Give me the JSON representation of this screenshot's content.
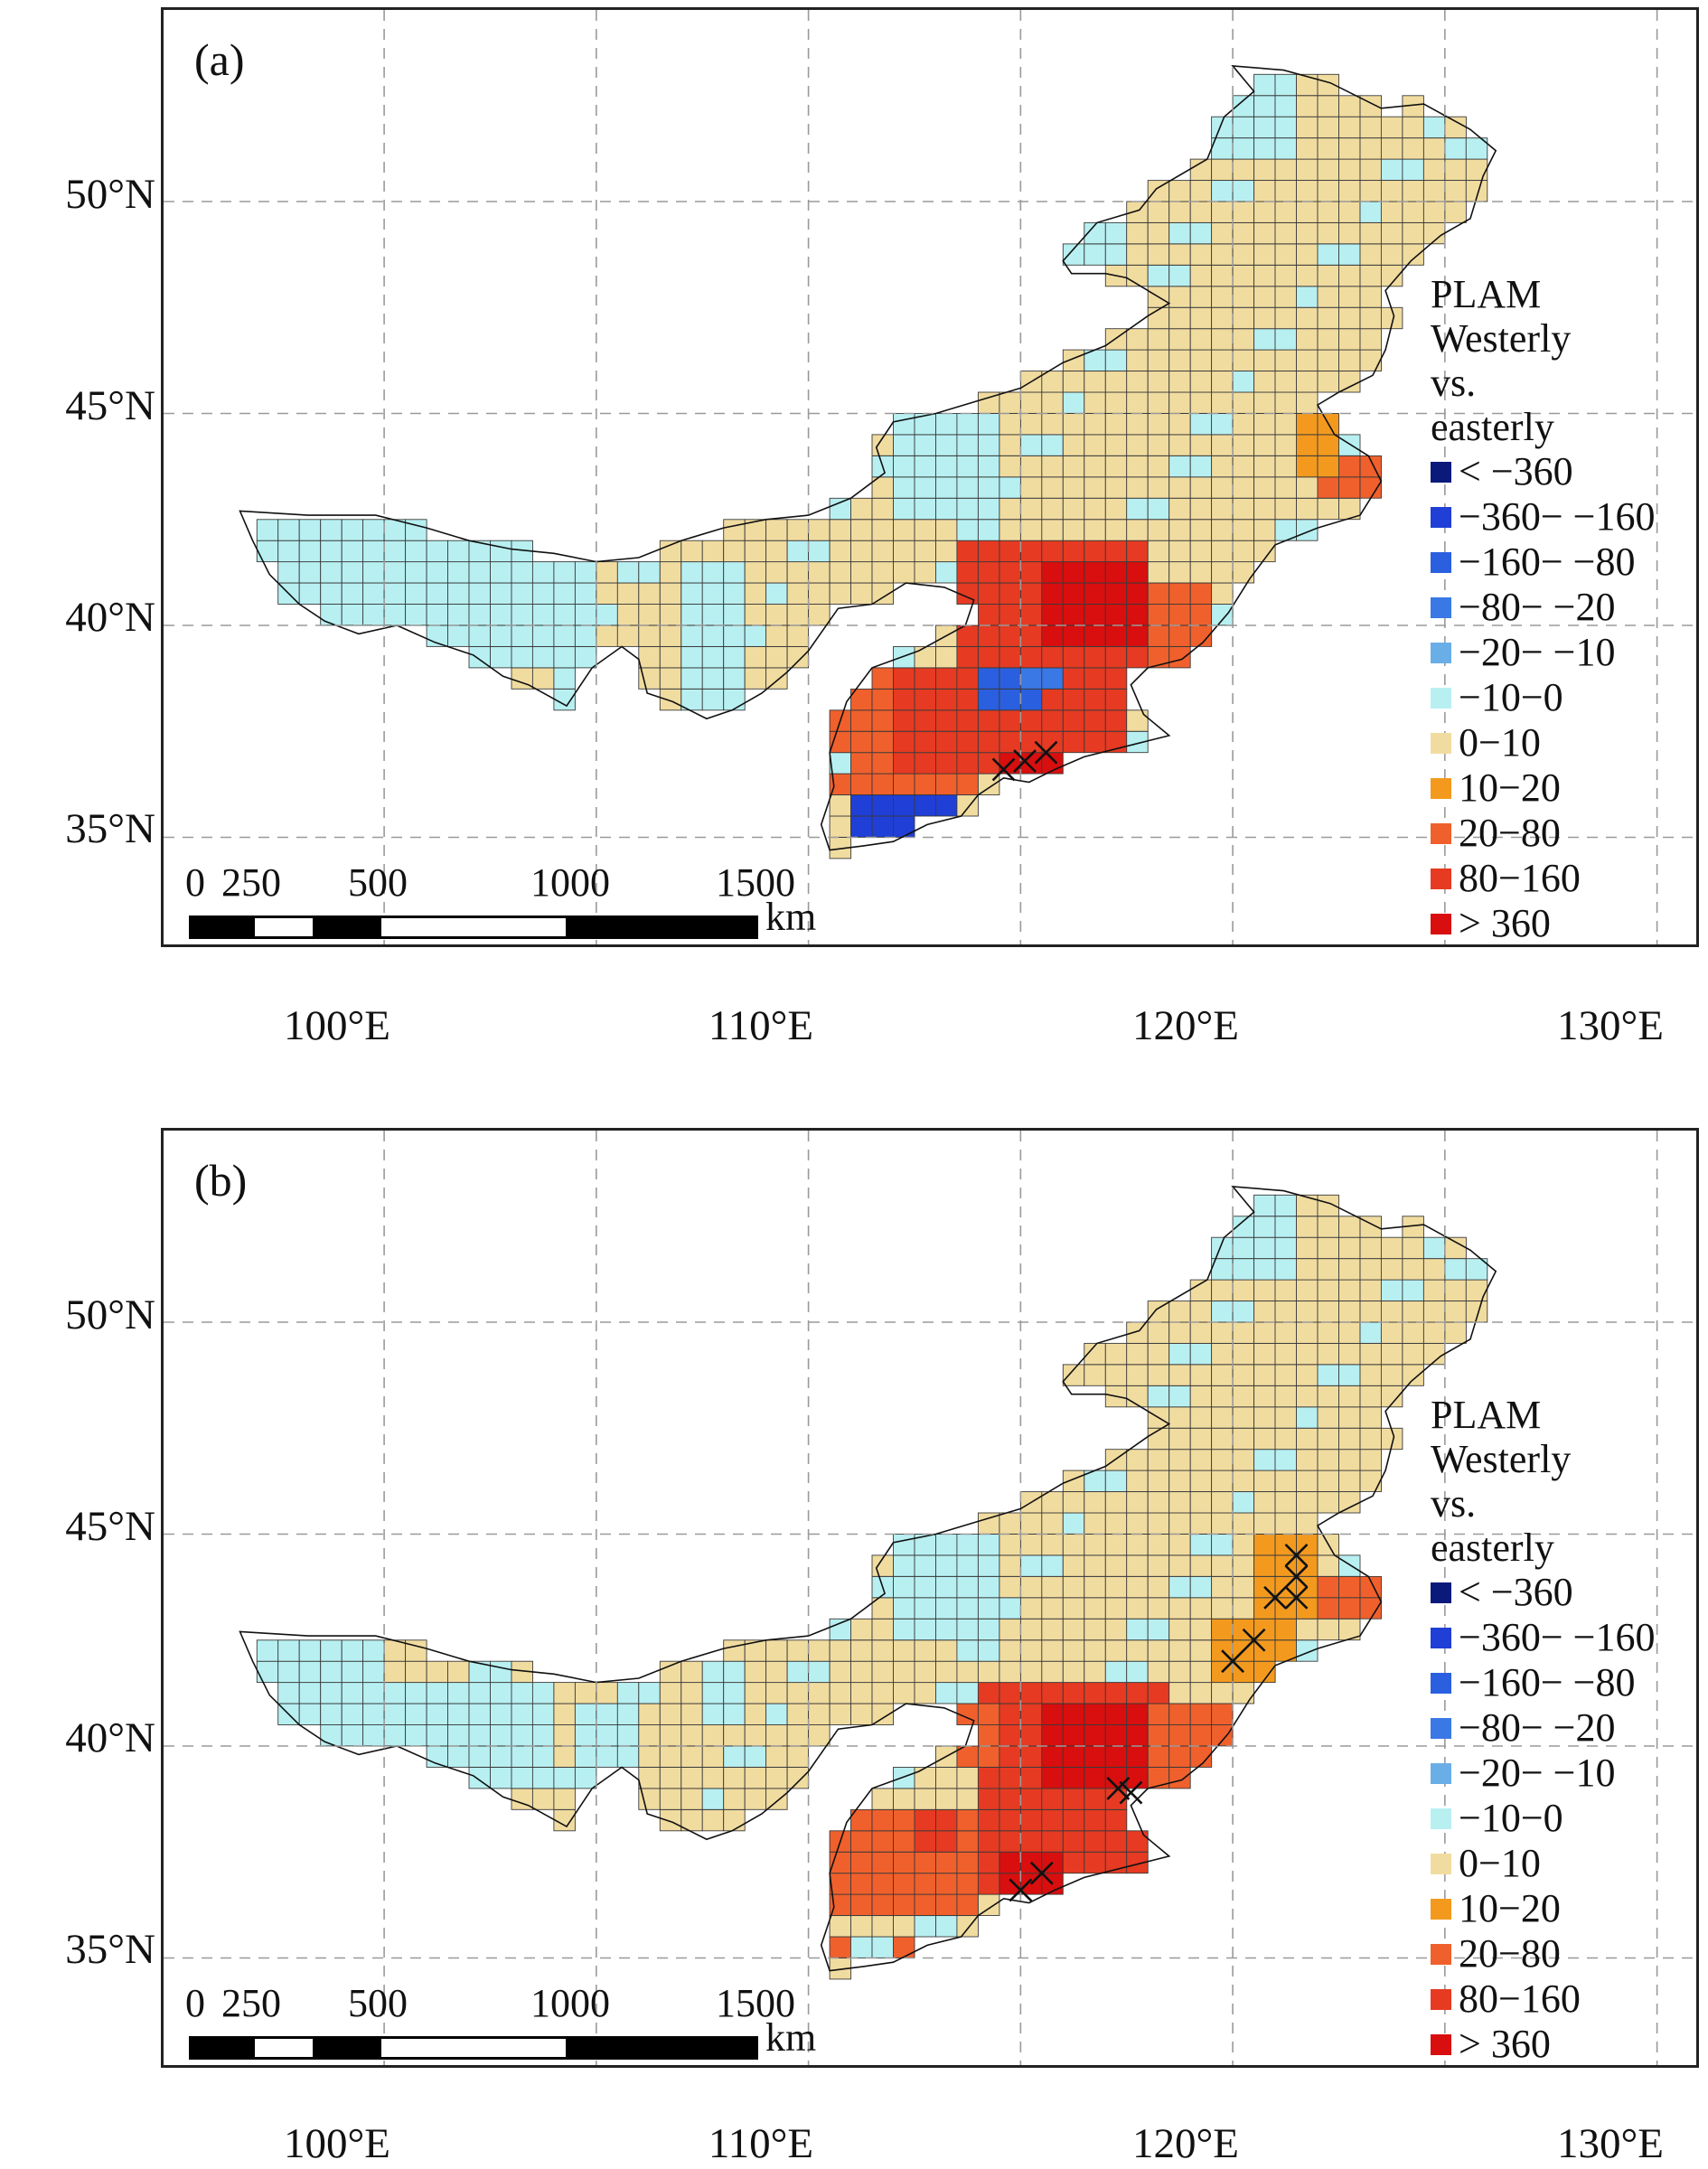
{
  "panels": [
    {
      "tag": "(a)",
      "lat_labels": [
        "50°N",
        "45°N",
        "40°N",
        "35°N"
      ],
      "lon_labels": [
        "100°E",
        "110°E",
        "120°E",
        "130°E"
      ],
      "scale": {
        "ticks": [
          "0",
          "250",
          "500",
          "1000",
          "1500"
        ],
        "unit": "km"
      },
      "legend": {
        "title": [
          "PLAM",
          "Westerly",
          "vs.",
          "easterly"
        ],
        "classes": [
          {
            "label": "< −360",
            "color": "#0b1a7a"
          },
          {
            "label": "−360− −160",
            "color": "#1f3fd6"
          },
          {
            "label": "−160− −80",
            "color": "#2a5fe0"
          },
          {
            "label": "−80− −20",
            "color": "#3a78e6"
          },
          {
            "label": "−20− −10",
            "color": "#6aaee8"
          },
          {
            "label": "−10−0",
            "color": "#b8f0f2"
          },
          {
            "label": "0−10",
            "color": "#f1dca0"
          },
          {
            "label": "10−20",
            "color": "#f39a1e"
          },
          {
            "label": "20−80",
            "color": "#f0602c"
          },
          {
            "label": "80−160",
            "color": "#e63a22"
          },
          {
            "label": "> 360",
            "color": "#d90e0e"
          }
        ]
      },
      "significance_marks": [
        {
          "lon": 114.6,
          "lat": 36.6
        },
        {
          "lon": 115.1,
          "lat": 36.8
        },
        {
          "lon": 115.6,
          "lat": 37.0
        }
      ]
    },
    {
      "tag": "(b)",
      "lat_labels": [
        "50°N",
        "45°N",
        "40°N",
        "35°N"
      ],
      "lon_labels": [
        "100°E",
        "110°E",
        "120°E",
        "130°E"
      ],
      "scale": {
        "ticks": [
          "0",
          "250",
          "500",
          "1000",
          "1500"
        ],
        "unit": "km"
      },
      "legend": {
        "title": [
          "PLAM",
          "Westerly",
          "vs.",
          "easterly"
        ],
        "classes": [
          {
            "label": "< −360",
            "color": "#0b1a7a"
          },
          {
            "label": "−360− −160",
            "color": "#1f3fd6"
          },
          {
            "label": "−160− −80",
            "color": "#2a5fe0"
          },
          {
            "label": "−80− −20",
            "color": "#3a78e6"
          },
          {
            "label": "−20− −10",
            "color": "#6aaee8"
          },
          {
            "label": "−10−0",
            "color": "#b8f0f2"
          },
          {
            "label": "0−10",
            "color": "#f1dca0"
          },
          {
            "label": "10−20",
            "color": "#f39a1e"
          },
          {
            "label": "20−80",
            "color": "#f0602c"
          },
          {
            "label": "80−160",
            "color": "#e63a22"
          },
          {
            "label": "> 360",
            "color": "#d90e0e"
          }
        ]
      },
      "significance_marks": [
        {
          "lon": 115.0,
          "lat": 36.6
        },
        {
          "lon": 115.5,
          "lat": 37.0
        },
        {
          "lon": 117.3,
          "lat": 39.0
        },
        {
          "lon": 117.6,
          "lat": 38.9
        },
        {
          "lon": 120.0,
          "lat": 42.0
        },
        {
          "lon": 120.5,
          "lat": 42.5
        },
        {
          "lon": 121.0,
          "lat": 43.5
        },
        {
          "lon": 121.5,
          "lat": 43.5
        },
        {
          "lon": 121.5,
          "lat": 44.0
        },
        {
          "lon": 121.5,
          "lat": 44.5
        }
      ]
    }
  ]
}
